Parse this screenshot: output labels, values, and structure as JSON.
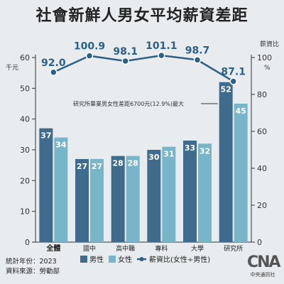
{
  "title": "社會新鮮人男女平均薪資差距",
  "footer": {
    "year": "統計年份：2023",
    "source": "資料來源：勞動部"
  },
  "logo": {
    "mark": "CNA",
    "sub": "中央通訊社"
  },
  "colors": {
    "male": "#3f6b8c",
    "female": "#79b5c9",
    "ratio": "#2e5f86"
  },
  "chart_data": {
    "type": "bar",
    "title": "社會新鮮人男女平均薪資差距",
    "categories": [
      "全體",
      "國中",
      "高中職",
      "專科",
      "大學",
      "研究所"
    ],
    "series": [
      {
        "name": "男性",
        "values": [
          37,
          27,
          28,
          30,
          33,
          52
        ]
      },
      {
        "name": "女性",
        "values": [
          34,
          27,
          28,
          31,
          32,
          45
        ]
      }
    ],
    "ratio_series": {
      "name": "薪資比(女性÷男性)",
      "type": "line",
      "values": [
        92.0,
        100.9,
        98.1,
        101.1,
        98.7,
        87.1
      ],
      "labels": [
        "92.0",
        "100.9",
        "98.1",
        "101.1",
        "98.7",
        "87.1"
      ]
    },
    "ylabel_left": "千元",
    "ylabel_right": "薪資比",
    "right_unit": "%",
    "ylim_left": [
      0,
      60
    ],
    "ylim_right": [
      0,
      100
    ],
    "yticks_left": [
      "0",
      "10",
      "20",
      "30",
      "40",
      "50",
      "60"
    ],
    "yticks_right": [
      "0",
      "20",
      "40",
      "60",
      "80",
      "100"
    ],
    "annotation": "研究所畢業男女性差距6700元(12.9%)最大",
    "legend": [
      "男性",
      "女性",
      "薪資比(女性÷男性)"
    ],
    "legend_position": "bottom",
    "grid": false
  }
}
